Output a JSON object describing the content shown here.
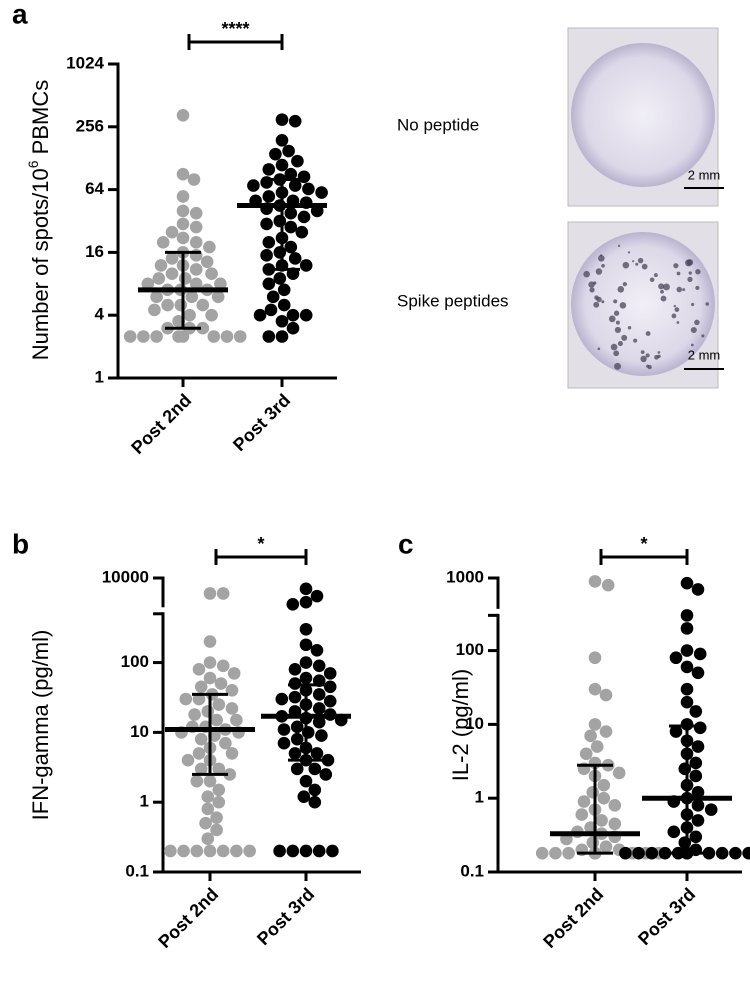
{
  "chart_data": [
    {
      "type": "dotplot",
      "panel_label": "a",
      "ylabel": [
        "Number of spots/10",
        "6",
        " PBMCs"
      ],
      "categories": [
        "Post 2nd",
        "Post 3rd"
      ],
      "colors": [
        "#a3a3a3",
        "#000000"
      ],
      "log_scale": true,
      "ylim": [
        1,
        1024
      ],
      "yticks": [
        1,
        4,
        16,
        64,
        256,
        1024
      ],
      "values": [
        [
          330,
          90,
          80,
          55,
          40,
          38,
          30,
          28,
          25,
          22,
          20,
          20,
          18,
          16,
          15,
          14,
          13,
          12,
          12,
          11,
          10,
          10,
          9,
          9,
          8,
          8,
          8,
          7,
          7,
          7,
          6,
          6,
          6,
          5,
          5,
          5,
          4.5,
          4,
          4,
          3.5,
          3,
          3,
          3,
          2.5,
          2.5,
          2.5,
          2.5,
          2.5,
          2.5,
          2.5,
          2.5
        ],
        [
          300,
          290,
          190,
          150,
          140,
          120,
          110,
          100,
          90,
          85,
          80,
          75,
          70,
          70,
          65,
          60,
          60,
          55,
          50,
          50,
          48,
          45,
          42,
          40,
          38,
          35,
          32,
          30,
          28,
          25,
          22,
          20,
          18,
          16,
          15,
          14,
          12,
          12,
          11,
          10,
          9,
          8,
          7,
          6,
          5,
          4.5,
          4,
          4,
          4,
          3.5,
          3,
          2.5,
          2.5
        ]
      ],
      "medians": [
        7,
        45
      ],
      "error_low": [
        3,
        11
      ],
      "error_high": [
        16,
        80
      ],
      "significance": "****"
    },
    {
      "type": "dotplot",
      "panel_label": "b",
      "ylabel": [
        "IFN-gamma (pg/ml)"
      ],
      "categories": [
        "Post 2nd",
        "Post 3rd"
      ],
      "colors": [
        "#a3a3a3",
        "#000000"
      ],
      "log_scale": true,
      "ylim": [
        0.1,
        10000
      ],
      "axis_break": [
        500,
        4000
      ],
      "yticks": [
        0.1,
        1,
        10,
        100,
        10000
      ],
      "values": [
        [
          6000,
          6000,
          200,
          100,
          90,
          80,
          70,
          60,
          50,
          45,
          40,
          35,
          30,
          30,
          25,
          22,
          20,
          18,
          15,
          15,
          12,
          12,
          11,
          10,
          10,
          9,
          8,
          7,
          6,
          5,
          5,
          4,
          4,
          3,
          3,
          2.5,
          2,
          2,
          1.5,
          1.2,
          1,
          0.8,
          0.6,
          0.5,
          0.4,
          0.3,
          0.2,
          0.2,
          0.2,
          0.2,
          0.2,
          0.2,
          0.2
        ],
        [
          7000,
          5500,
          4500,
          4200,
          300,
          180,
          150,
          100,
          90,
          80,
          70,
          60,
          55,
          50,
          45,
          40,
          35,
          32,
          30,
          28,
          25,
          22,
          20,
          18,
          17,
          16,
          15,
          14,
          12,
          11,
          10,
          9,
          8,
          7,
          6,
          5,
          5,
          4,
          4,
          3,
          3,
          2.5,
          2,
          1.5,
          1.2,
          1,
          0.2,
          0.2,
          0.2,
          0.2,
          0.2
        ]
      ],
      "medians": [
        11,
        17
      ],
      "error_low": [
        2.5,
        4
      ],
      "error_high": [
        35,
        48
      ],
      "significance": "*"
    },
    {
      "type": "dotplot",
      "panel_label": "c",
      "ylabel": [
        "IL-2 (pg/ml)"
      ],
      "categories": [
        "Post 2nd",
        "Post 3rd"
      ],
      "colors": [
        "#a3a3a3",
        "#000000"
      ],
      "log_scale": true,
      "ylim": [
        0.1,
        1000
      ],
      "axis_break": [
        300,
        400
      ],
      "yticks": [
        0.1,
        1,
        10,
        100,
        1000
      ],
      "values": [
        [
          900,
          800,
          80,
          30,
          25,
          10,
          8,
          7,
          5,
          4,
          3,
          2.8,
          2.5,
          2.2,
          2,
          1.5,
          1.2,
          1,
          0.9,
          0.8,
          0.7,
          0.6,
          0.5,
          0.45,
          0.4,
          0.35,
          0.33,
          0.3,
          0.28,
          0.25,
          0.22,
          0.2,
          0.2,
          0.18,
          0.18,
          0.18,
          0.18,
          0.18,
          0.18,
          0.18,
          0.18,
          0.18,
          0.18,
          0.18,
          0.18,
          0.18
        ],
        [
          850,
          700,
          300,
          200,
          100,
          90,
          80,
          60,
          50,
          30,
          20,
          15,
          10,
          9,
          8,
          6,
          5,
          4,
          3,
          2.5,
          2,
          1.5,
          1.2,
          1,
          0.9,
          0.8,
          0.7,
          0.6,
          0.5,
          0.4,
          0.35,
          0.3,
          0.25,
          0.2,
          0.18,
          0.18,
          0.18,
          0.18,
          0.18,
          0.18,
          0.18,
          0.18,
          0.18,
          0.18,
          0.18,
          0.18
        ]
      ],
      "medians": [
        0.33,
        1
      ],
      "error_low": [
        0.18,
        0.18
      ],
      "error_high": [
        2.8,
        9.5
      ],
      "significance": "*"
    }
  ],
  "images": [
    {
      "label": "No peptide",
      "scale_bar": "2 mm"
    },
    {
      "label": "Spike peptides",
      "scale_bar": "2 mm"
    }
  ]
}
